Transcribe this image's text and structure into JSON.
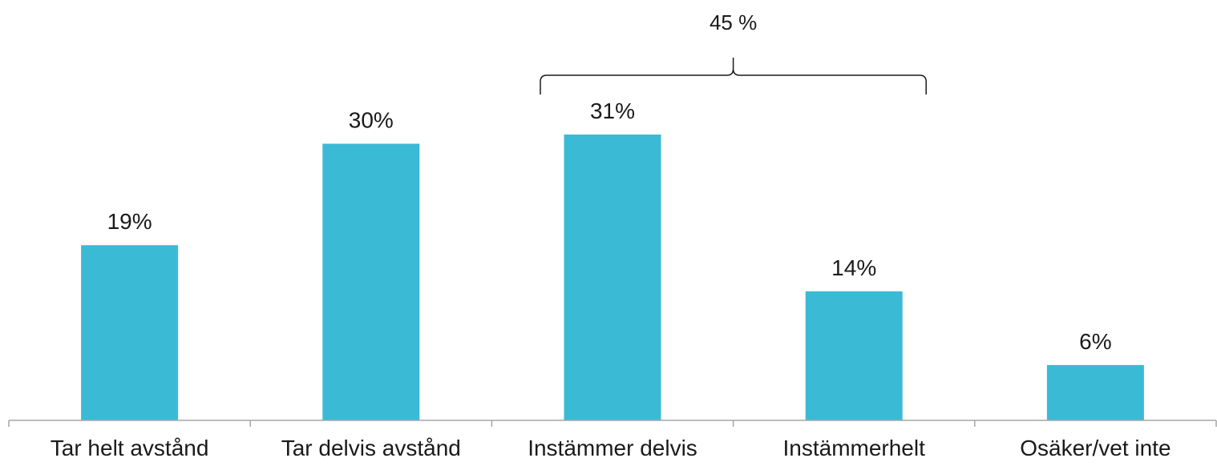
{
  "chart_data": {
    "type": "bar",
    "categories": [
      "Tar helt avstånd",
      "Tar delvis avstånd",
      "Instämmer delvis",
      "Instämmerhelt",
      "Osäker/vet inte"
    ],
    "values": [
      19,
      30,
      31,
      14,
      6
    ],
    "data_labels": [
      "19%",
      "30%",
      "31%",
      "14%",
      "6%"
    ],
    "ylim": [
      0,
      31
    ],
    "grid": false,
    "legend": "none",
    "bar_color": "#3bbad6",
    "annotation": {
      "text": "45 %",
      "spans_categories": [
        "Instämmer delvis",
        "Instämmerhelt"
      ]
    }
  }
}
